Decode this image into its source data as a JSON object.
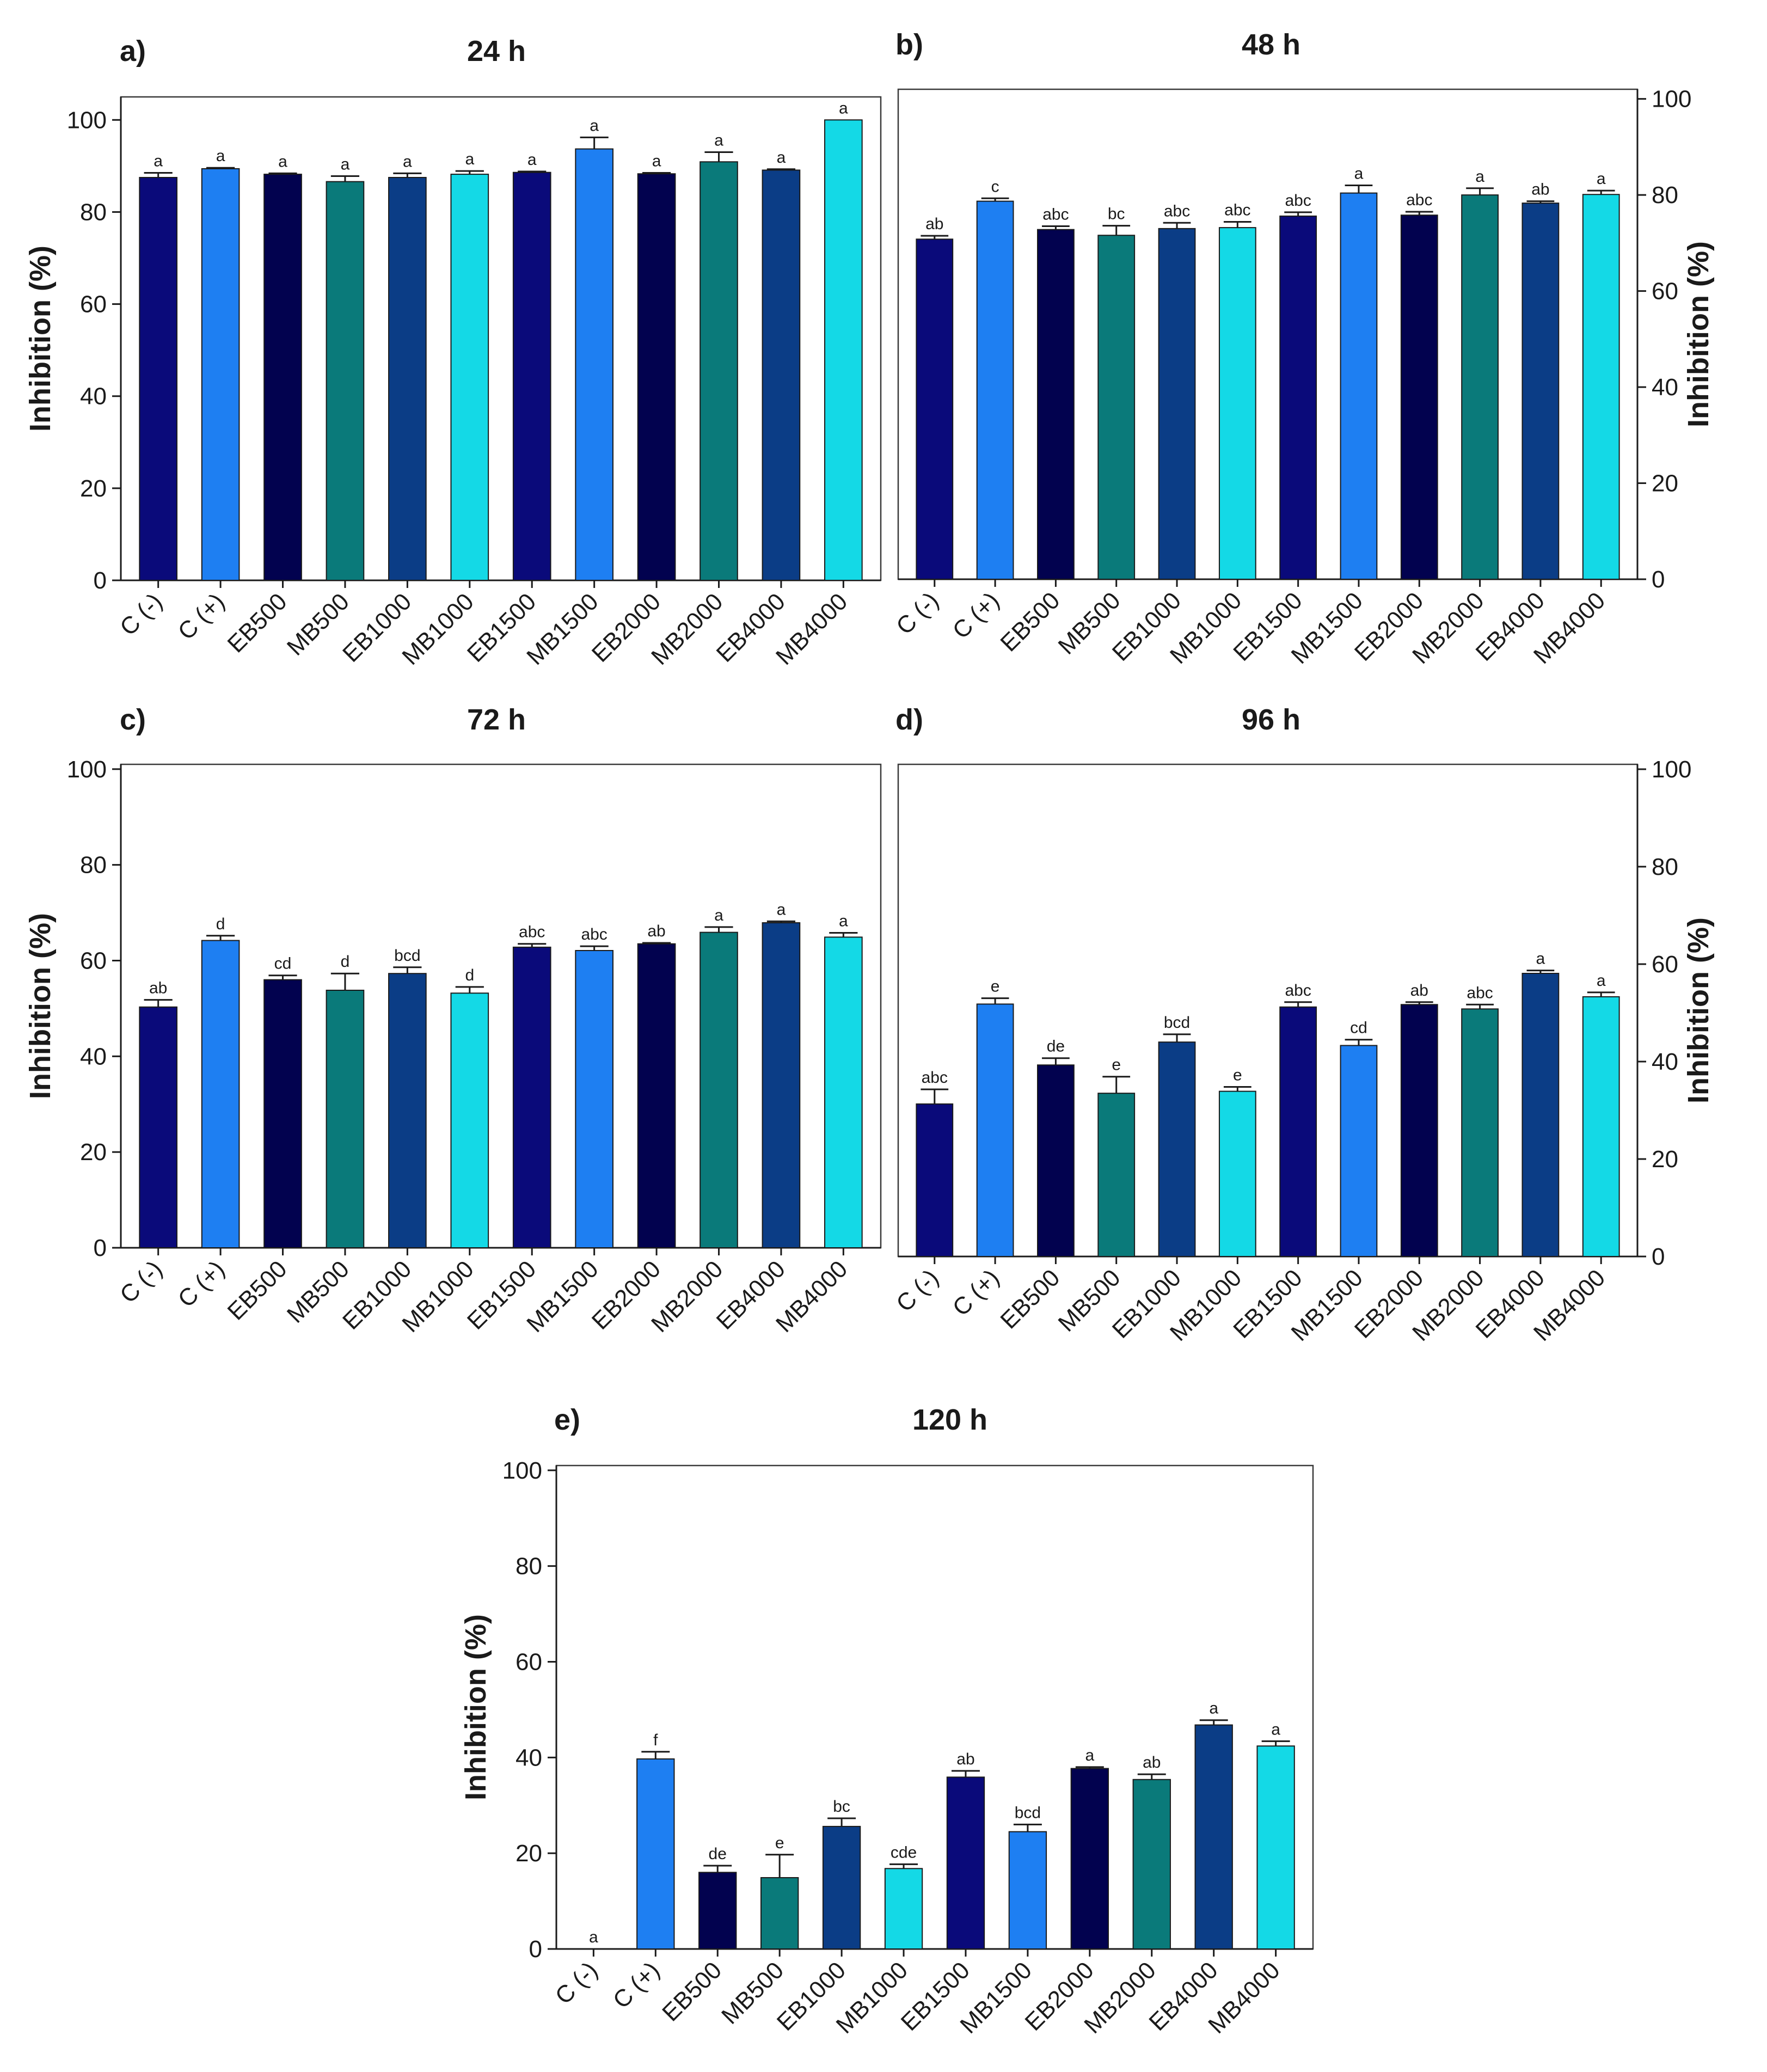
{
  "figure": {
    "panels": [
      {
        "letter": "a)",
        "title": "24 h"
      },
      {
        "letter": "b)",
        "title": "48 h"
      },
      {
        "letter": "c)",
        "title": "72 h"
      },
      {
        "letter": "d)",
        "title": "96 h"
      },
      {
        "letter": "e)",
        "title": "120 h"
      }
    ]
  },
  "chart_data": [
    {
      "type": "bar",
      "title": "24 h",
      "panel": "a)",
      "ylabel": "Inhibition (%)",
      "y_axis_side": "left",
      "ylim": [
        0,
        105
      ],
      "yticks": [
        0,
        20,
        40,
        60,
        80,
        100
      ],
      "categories": [
        "C (-)",
        "C (+)",
        "EB500",
        "MB500",
        "EB1000",
        "MB1000",
        "EB1500",
        "MB1500",
        "EB2000",
        "MB2000",
        "EB4000",
        "MB4000"
      ],
      "values": [
        87.5,
        89.4,
        88.2,
        86.6,
        87.5,
        88.2,
        88.6,
        93.7,
        88.3,
        90.9,
        89.1,
        100
      ],
      "errors": [
        1.0,
        0.2,
        0.2,
        1.2,
        0.9,
        0.7,
        0.2,
        2.5,
        0.2,
        2.1,
        0.2,
        0.0
      ],
      "labels": [
        "a",
        "a",
        "a",
        "a",
        "a",
        "a",
        "a",
        "a",
        "a",
        "a",
        "a",
        "a"
      ],
      "colors": [
        "#0a0a7a",
        "#1e7ff2",
        "#02024f",
        "#0a7a7a",
        "#0b3d86",
        "#14d9e6",
        "#0a0a7a",
        "#1e7ff2",
        "#02024f",
        "#0a7a7a",
        "#0b3d86",
        "#14d9e6"
      ],
      "grid": false
    },
    {
      "type": "bar",
      "title": "48 h",
      "panel": "b)",
      "ylabel": "Inhibition (%)",
      "y_axis_side": "right",
      "ylim": [
        0,
        102
      ],
      "yticks": [
        0,
        20,
        40,
        60,
        80,
        100
      ],
      "categories": [
        "C (-)",
        "C (+)",
        "EB500",
        "MB500",
        "EB1000",
        "MB1000",
        "EB1500",
        "MB1500",
        "EB2000",
        "MB2000",
        "EB4000",
        "MB4000"
      ],
      "values": [
        70.8,
        78.7,
        72.8,
        71.6,
        73.0,
        73.2,
        75.6,
        80.4,
        75.8,
        80.0,
        78.3,
        80.1
      ],
      "errors": [
        0.7,
        0.6,
        0.7,
        2.0,
        1.2,
        1.2,
        0.8,
        1.6,
        0.7,
        1.4,
        0.4,
        0.8
      ],
      "labels": [
        "ab",
        "c",
        "abc",
        "bc",
        "abc",
        "abc",
        "abc",
        "a",
        "abc",
        "a",
        "ab",
        "a"
      ],
      "colors": [
        "#0a0a7a",
        "#1e7ff2",
        "#02024f",
        "#0a7a7a",
        "#0b3d86",
        "#14d9e6",
        "#0a0a7a",
        "#1e7ff2",
        "#02024f",
        "#0a7a7a",
        "#0b3d86",
        "#14d9e6"
      ],
      "grid": false
    },
    {
      "type": "bar",
      "title": "72 h",
      "panel": "c)",
      "ylabel": "Inhibition (%)",
      "y_axis_side": "left",
      "ylim": [
        0,
        101
      ],
      "yticks": [
        0,
        20,
        40,
        60,
        80,
        100
      ],
      "categories": [
        "C (-)",
        "C (+)",
        "EB500",
        "MB500",
        "EB1000",
        "MB1000",
        "EB1500",
        "MB1500",
        "EB2000",
        "MB2000",
        "EB4000",
        "MB4000"
      ],
      "values": [
        50.3,
        64.2,
        56.0,
        53.8,
        57.3,
        53.2,
        62.8,
        62.1,
        63.5,
        65.9,
        67.9,
        64.9
      ],
      "errors": [
        1.5,
        1.0,
        0.9,
        3.5,
        1.3,
        1.3,
        0.7,
        0.9,
        0.2,
        1.1,
        0.3,
        0.9
      ],
      "labels": [
        "ab",
        "d",
        "cd",
        "d",
        "bcd",
        "d",
        "abc",
        "abc",
        "ab",
        "a",
        "a",
        "a"
      ],
      "colors": [
        "#0a0a7a",
        "#1e7ff2",
        "#02024f",
        "#0a7a7a",
        "#0b3d86",
        "#14d9e6",
        "#0a0a7a",
        "#1e7ff2",
        "#02024f",
        "#0a7a7a",
        "#0b3d86",
        "#14d9e6"
      ],
      "grid": false
    },
    {
      "type": "bar",
      "title": "96 h",
      "panel": "d)",
      "ylabel": "Inhibition (%)",
      "y_axis_side": "right",
      "ylim": [
        0,
        101
      ],
      "yticks": [
        0,
        20,
        40,
        60,
        80,
        100
      ],
      "categories": [
        "C (-)",
        "C (+)",
        "EB500",
        "MB500",
        "EB1000",
        "MB1000",
        "EB1500",
        "MB1500",
        "EB2000",
        "MB2000",
        "EB4000",
        "MB4000"
      ],
      "values": [
        31.3,
        51.8,
        39.3,
        33.5,
        44.0,
        33.9,
        51.2,
        43.3,
        51.7,
        50.8,
        58.1,
        53.3
      ],
      "errors": [
        3.0,
        1.2,
        1.4,
        3.4,
        1.6,
        0.9,
        1.0,
        1.2,
        0.5,
        0.9,
        0.6,
        0.9
      ],
      "labels": [
        "abc",
        "e",
        "de",
        "e",
        "bcd",
        "e",
        "abc",
        "cd",
        "ab",
        "abc",
        "a",
        "a"
      ],
      "colors": [
        "#0a0a7a",
        "#1e7ff2",
        "#02024f",
        "#0a7a7a",
        "#0b3d86",
        "#14d9e6",
        "#0a0a7a",
        "#1e7ff2",
        "#02024f",
        "#0a7a7a",
        "#0b3d86",
        "#14d9e6"
      ],
      "grid": false
    },
    {
      "type": "bar",
      "title": "120 h",
      "panel": "e)",
      "ylabel": "Inhibition (%)",
      "y_axis_side": "left",
      "ylim": [
        0,
        101
      ],
      "yticks": [
        0,
        20,
        40,
        60,
        80,
        100
      ],
      "categories": [
        "C (-)",
        "C (+)",
        "EB500",
        "MB500",
        "EB1000",
        "MB1000",
        "EB1500",
        "MB1500",
        "EB2000",
        "MB2000",
        "EB4000",
        "MB4000"
      ],
      "values": [
        0,
        39.7,
        16.0,
        14.9,
        25.6,
        16.8,
        35.9,
        24.5,
        37.7,
        35.4,
        46.8,
        42.4
      ],
      "errors": [
        0,
        1.5,
        1.4,
        4.8,
        1.7,
        0.9,
        1.3,
        1.5,
        0.3,
        1.1,
        1.0,
        1.0
      ],
      "labels": [
        "a",
        "f",
        "de",
        "e",
        "bc",
        "cde",
        "ab",
        "bcd",
        "a",
        "ab",
        "a",
        "a"
      ],
      "colors": [
        "#0a0a7a",
        "#1e7ff2",
        "#02024f",
        "#0a7a7a",
        "#0b3d86",
        "#14d9e6",
        "#0a0a7a",
        "#1e7ff2",
        "#02024f",
        "#0a7a7a",
        "#0b3d86",
        "#14d9e6"
      ],
      "grid": false
    }
  ]
}
